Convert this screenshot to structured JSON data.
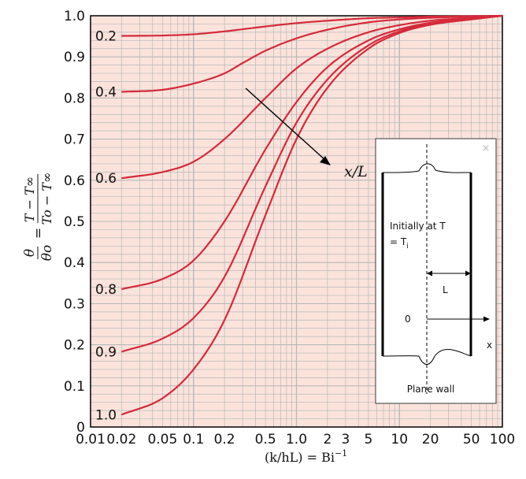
{
  "chart_data": {
    "type": "line",
    "x_scale": "log",
    "xlim": [
      0.01,
      100
    ],
    "ylim": [
      0,
      1.0
    ],
    "grid": true,
    "x_ticks": [
      {
        "value": 0.01,
        "label": "0.01"
      },
      {
        "value": 0.02,
        "label": "0.02"
      },
      {
        "value": 0.05,
        "label": "0.05"
      },
      {
        "value": 0.1,
        "label": "0.1"
      },
      {
        "value": 0.2,
        "label": "0.2"
      },
      {
        "value": 0.5,
        "label": "0.5"
      },
      {
        "value": 1.0,
        "label": "1.0"
      },
      {
        "value": 2,
        "label": "2"
      },
      {
        "value": 3,
        "label": "3"
      },
      {
        "value": 5,
        "label": "5"
      },
      {
        "value": 10,
        "label": "10"
      },
      {
        "value": 20,
        "label": "20"
      },
      {
        "value": 50,
        "label": "50"
      },
      {
        "value": 100,
        "label": "100"
      }
    ],
    "y_ticks": [
      {
        "value": 0,
        "label": "0"
      },
      {
        "value": 0.1,
        "label": "0.1"
      },
      {
        "value": 0.2,
        "label": "0.2"
      },
      {
        "value": 0.3,
        "label": "0.3"
      },
      {
        "value": 0.4,
        "label": "0.4"
      },
      {
        "value": 0.5,
        "label": "0.5"
      },
      {
        "value": 0.6,
        "label": "0.6"
      },
      {
        "value": 0.7,
        "label": "0.7"
      },
      {
        "value": 0.8,
        "label": "0.8"
      },
      {
        "value": 0.9,
        "label": "0.9"
      },
      {
        "value": 1.0,
        "label": "1.0"
      }
    ],
    "xlabel": "(k/hL) = Bi",
    "xlabel_superscript": "−1",
    "ylabel_numerator": "θ",
    "ylabel_denominator": "θo",
    "ylabel_eq": "=",
    "ylabel_frac_numerator": "T − T∞",
    "ylabel_frac_denominator": "To − T∞",
    "arrow_label": "x/L",
    "series": [
      {
        "name": "0.2",
        "x": [
          0.02,
          0.05,
          0.1,
          0.2,
          0.5,
          1,
          2,
          5,
          10,
          20,
          50,
          100
        ],
        "values": [
          0.951,
          0.952,
          0.955,
          0.962,
          0.974,
          0.982,
          0.988,
          0.994,
          0.996,
          0.998,
          0.999,
          1.0
        ]
      },
      {
        "name": "0.4",
        "x": [
          0.02,
          0.05,
          0.1,
          0.2,
          0.3,
          0.5,
          1,
          2,
          5,
          10,
          20,
          50,
          100
        ],
        "values": [
          0.815,
          0.82,
          0.835,
          0.86,
          0.885,
          0.915,
          0.945,
          0.966,
          0.984,
          0.991,
          0.995,
          0.998,
          1.0
        ]
      },
      {
        "name": "0.6",
        "x": [
          0.02,
          0.05,
          0.1,
          0.2,
          0.5,
          1,
          2,
          5,
          10,
          20,
          50,
          100
        ],
        "values": [
          0.605,
          0.62,
          0.645,
          0.7,
          0.8,
          0.872,
          0.92,
          0.96,
          0.977,
          0.988,
          0.995,
          1.0
        ]
      },
      {
        "name": "0.8",
        "x": [
          0.02,
          0.05,
          0.1,
          0.2,
          0.5,
          1,
          2,
          5,
          10,
          20,
          50,
          100
        ],
        "values": [
          0.335,
          0.36,
          0.405,
          0.5,
          0.675,
          0.79,
          0.875,
          0.94,
          0.967,
          0.983,
          0.993,
          1.0
        ]
      },
      {
        "name": "0.9",
        "x": [
          0.02,
          0.05,
          0.1,
          0.2,
          0.5,
          1,
          2,
          5,
          10,
          20,
          50,
          100
        ],
        "values": [
          0.183,
          0.215,
          0.265,
          0.365,
          0.585,
          0.74,
          0.845,
          0.928,
          0.962,
          0.98,
          0.992,
          1.0
        ]
      },
      {
        "name": "1.0",
        "x": [
          0.02,
          0.05,
          0.1,
          0.2,
          0.5,
          1,
          2,
          5,
          10,
          20,
          50,
          100
        ],
        "values": [
          0.03,
          0.07,
          0.14,
          0.26,
          0.515,
          0.7,
          0.825,
          0.92,
          0.958,
          0.978,
          0.991,
          1.0
        ]
      }
    ],
    "colors": {
      "curve": "#d42a3a",
      "plot_bg": "#fbe3dc",
      "grid": "#b8b8b8",
      "axis": "#000000"
    }
  },
  "inset": {
    "text_initially": "Initially at T",
    "text_ti": "= T",
    "text_ti_sub": "i",
    "label_L": "L",
    "label_0": "0",
    "label_x": "x",
    "caption": "Plane wall",
    "close_icon": "close-icon",
    "close_glyph": "×"
  }
}
